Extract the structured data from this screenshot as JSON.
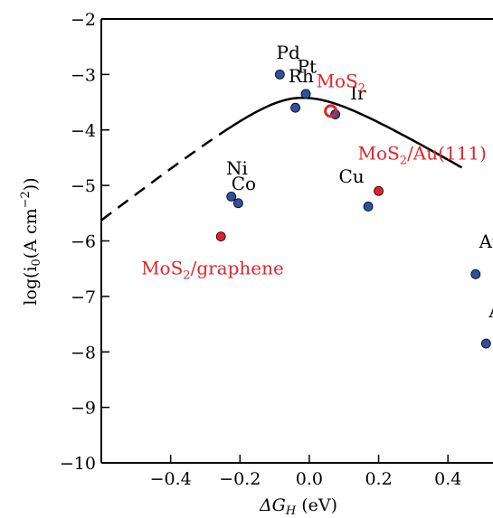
{
  "chart_data": {
    "type": "scatter",
    "xlabel_symbol": "ΔG",
    "xlabel_sub": "H",
    "xlabel_unit": " (eV)",
    "ylabel_pre": "log(i",
    "ylabel_sub": "0",
    "ylabel_mid": "(A  cm",
    "ylabel_sup": "−2",
    "ylabel_post": "))",
    "xlim": [
      -0.6,
      0.53
    ],
    "ylim": [
      -10,
      -2
    ],
    "x_ticks": [
      -0.4,
      -0.2,
      0.0,
      0.2,
      0.4
    ],
    "x_tick_labels": [
      "−0.4",
      "−0.2",
      "0.0",
      "0.2",
      "0.4"
    ],
    "y_ticks": [
      -2,
      -3,
      -4,
      -5,
      -6,
      -7,
      -8,
      -9,
      -10
    ],
    "y_tick_labels": [
      "−2",
      "−3",
      "−4",
      "−5",
      "−6",
      "−7",
      "−8",
      "−9",
      "−10"
    ],
    "grid": false,
    "colors": {
      "metal": "#2f4fa0",
      "mos2": "#e0242a",
      "curve": "#000000"
    },
    "curve": {
      "peak_x": -0.02,
      "peak_y": -3.42,
      "rise_to": -0.6,
      "dashed_below_x": -0.245,
      "left_slope": 18.6,
      "right_slope": 14.2,
      "right_end_x": 0.44
    },
    "points": [
      {
        "label": "Pd",
        "x": -0.085,
        "y": -3.0,
        "group": "metal",
        "lx": -0.095,
        "ly": -2.72
      },
      {
        "label": "Pt",
        "x": -0.01,
        "y": -3.35,
        "group": "metal",
        "lx": -0.035,
        "ly": -2.97
      },
      {
        "label": "Rh",
        "x": -0.04,
        "y": -3.6,
        "group": "metal",
        "lx": -0.06,
        "ly": -3.14
      },
      {
        "label": "Ir",
        "x": 0.075,
        "y": -3.72,
        "group": "metal",
        "lx": 0.118,
        "ly": -3.45
      },
      {
        "label": "Ni",
        "x": -0.225,
        "y": -5.2,
        "group": "metal",
        "lx": -0.24,
        "ly": -4.8
      },
      {
        "label": "Co",
        "x": -0.205,
        "y": -5.32,
        "group": "metal",
        "lx": -0.225,
        "ly": -5.08
      },
      {
        "label": "Cu",
        "x": 0.17,
        "y": -5.38,
        "group": "metal",
        "lx": 0.085,
        "ly": -4.95
      },
      {
        "label": "Au",
        "x": 0.48,
        "y": -6.6,
        "group": "metal",
        "lx": 0.49,
        "ly": -6.12
      },
      {
        "label": "Ag",
        "x": 0.51,
        "y": -7.85,
        "group": "metal",
        "lx": 0.518,
        "ly": -7.38
      },
      {
        "label": "MoS2/Au(111)",
        "x": 0.2,
        "y": -5.1,
        "group": "mos2",
        "lx": 0.14,
        "ly": -4.53
      },
      {
        "label": "MoS2/graphene",
        "x": -0.255,
        "y": -5.92,
        "group": "mos2",
        "lx": -0.485,
        "ly": -6.6
      },
      {
        "label": "MoS2",
        "x": 0.062,
        "y": -3.66,
        "group": "mos2",
        "ring": true,
        "lx": 0.02,
        "ly": -3.23
      }
    ]
  }
}
